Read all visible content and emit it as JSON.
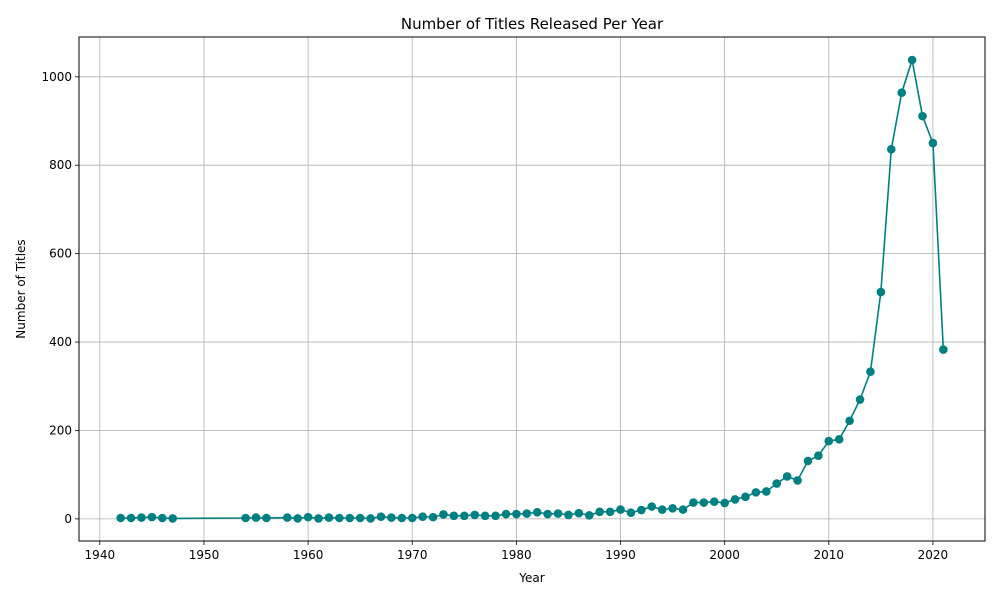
{
  "chart_data": {
    "type": "line",
    "title": "Number of Titles Released Per Year",
    "xlabel": "Year",
    "ylabel": "Number of Titles",
    "xlim": [
      1938,
      2025
    ],
    "ylim": [
      -50,
      1090
    ],
    "x_ticks": [
      1940,
      1950,
      1960,
      1970,
      1980,
      1990,
      2000,
      2010,
      2020
    ],
    "y_ticks": [
      0,
      200,
      400,
      600,
      800,
      1000
    ],
    "grid": true,
    "line_color": "#008080",
    "marker": "circle",
    "points": [
      {
        "x": 1942,
        "y": 2
      },
      {
        "x": 1943,
        "y": 2
      },
      {
        "x": 1944,
        "y": 3
      },
      {
        "x": 1945,
        "y": 4
      },
      {
        "x": 1946,
        "y": 2
      },
      {
        "x": 1947,
        "y": 1
      },
      {
        "x": 1954,
        "y": 2
      },
      {
        "x": 1955,
        "y": 3
      },
      {
        "x": 1956,
        "y": 2
      },
      {
        "x": 1958,
        "y": 3
      },
      {
        "x": 1959,
        "y": 1
      },
      {
        "x": 1960,
        "y": 4
      },
      {
        "x": 1961,
        "y": 1
      },
      {
        "x": 1962,
        "y": 3
      },
      {
        "x": 1963,
        "y": 2
      },
      {
        "x": 1964,
        "y": 2
      },
      {
        "x": 1965,
        "y": 2
      },
      {
        "x": 1966,
        "y": 1
      },
      {
        "x": 1967,
        "y": 5
      },
      {
        "x": 1968,
        "y": 3
      },
      {
        "x": 1969,
        "y": 2
      },
      {
        "x": 1970,
        "y": 2
      },
      {
        "x": 1971,
        "y": 5
      },
      {
        "x": 1972,
        "y": 4
      },
      {
        "x": 1973,
        "y": 10
      },
      {
        "x": 1974,
        "y": 7
      },
      {
        "x": 1975,
        "y": 7
      },
      {
        "x": 1976,
        "y": 9
      },
      {
        "x": 1977,
        "y": 7
      },
      {
        "x": 1978,
        "y": 7
      },
      {
        "x": 1979,
        "y": 11
      },
      {
        "x": 1980,
        "y": 11
      },
      {
        "x": 1981,
        "y": 12
      },
      {
        "x": 1982,
        "y": 15
      },
      {
        "x": 1983,
        "y": 11
      },
      {
        "x": 1984,
        "y": 12
      },
      {
        "x": 1985,
        "y": 9
      },
      {
        "x": 1986,
        "y": 13
      },
      {
        "x": 1987,
        "y": 8
      },
      {
        "x": 1988,
        "y": 16
      },
      {
        "x": 1989,
        "y": 16
      },
      {
        "x": 1990,
        "y": 21
      },
      {
        "x": 1991,
        "y": 14
      },
      {
        "x": 1992,
        "y": 20
      },
      {
        "x": 1993,
        "y": 28
      },
      {
        "x": 1994,
        "y": 21
      },
      {
        "x": 1995,
        "y": 24
      },
      {
        "x": 1996,
        "y": 21
      },
      {
        "x": 1997,
        "y": 37
      },
      {
        "x": 1998,
        "y": 37
      },
      {
        "x": 1999,
        "y": 39
      },
      {
        "x": 2000,
        "y": 36
      },
      {
        "x": 2001,
        "y": 44
      },
      {
        "x": 2002,
        "y": 50
      },
      {
        "x": 2003,
        "y": 60
      },
      {
        "x": 2004,
        "y": 62
      },
      {
        "x": 2005,
        "y": 80
      },
      {
        "x": 2006,
        "y": 96
      },
      {
        "x": 2007,
        "y": 87
      },
      {
        "x": 2008,
        "y": 131
      },
      {
        "x": 2009,
        "y": 143
      },
      {
        "x": 2010,
        "y": 176
      },
      {
        "x": 2011,
        "y": 180
      },
      {
        "x": 2012,
        "y": 222
      },
      {
        "x": 2013,
        "y": 270
      },
      {
        "x": 2014,
        "y": 333
      },
      {
        "x": 2015,
        "y": 513
      },
      {
        "x": 2016,
        "y": 836
      },
      {
        "x": 2017,
        "y": 964
      },
      {
        "x": 2018,
        "y": 1038
      },
      {
        "x": 2019,
        "y": 911
      },
      {
        "x": 2020,
        "y": 850
      },
      {
        "x": 2021,
        "y": 383
      }
    ]
  }
}
